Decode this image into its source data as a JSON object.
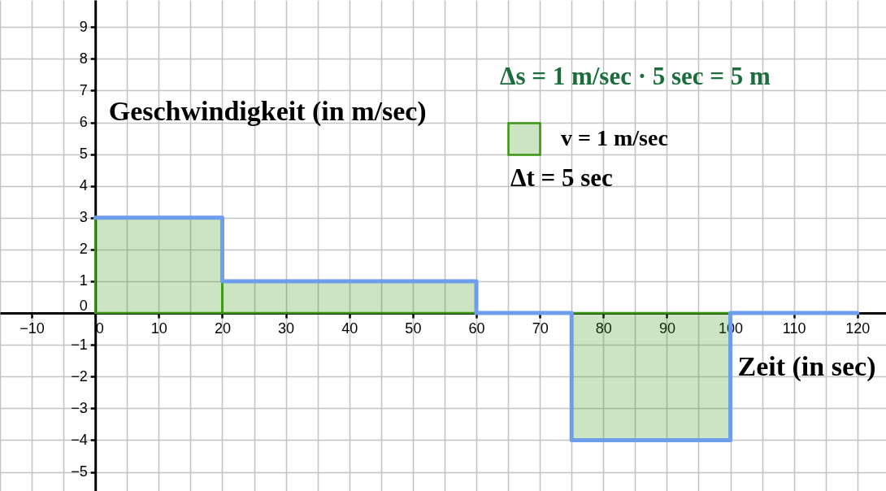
{
  "chart_data": {
    "type": "histogram",
    "xlabel": "Zeit (in sec)",
    "ylabel": "Geschwindigkeit (in m/sec)",
    "annotations": [
      "Δs = 1 m/sec · 5 sec = 5 m",
      "Δt = 5 sec"
    ],
    "series": [
      {
        "name": "v = 1 m/sec",
        "color": "#3c9614",
        "bins": [
          0,
          20,
          60,
          75,
          100
        ],
        "values": [
          3,
          1,
          0,
          -4
        ]
      },
      {
        "type": "step",
        "color": "#6d9eeb",
        "line_style": "solid",
        "x": [
          0,
          20,
          60,
          75,
          100,
          120
        ],
        "values": [
          3,
          1,
          0,
          -4,
          0,
          0
        ]
      }
    ],
    "xlim": [
      -15,
      124.5
    ],
    "ylim": [
      -5.6,
      9.85
    ],
    "xticks": [
      {
        "value": -15,
        "label": null
      },
      {
        "value": -10,
        "label": "−10"
      },
      {
        "value": -5,
        "label": null
      },
      0,
      {
        "value": 5,
        "label": null
      },
      10,
      {
        "value": 15,
        "label": null
      },
      20,
      {
        "value": 25,
        "label": null
      },
      30,
      {
        "value": 35,
        "label": null
      },
      40,
      {
        "value": 45,
        "label": null
      },
      50,
      {
        "value": 55,
        "label": null
      },
      60,
      {
        "value": 65,
        "label": null
      },
      70,
      {
        "value": 75,
        "label": null
      },
      80,
      {
        "value": 85,
        "label": null
      },
      90,
      {
        "value": 95,
        "label": null
      },
      100,
      {
        "value": 105,
        "label": null
      },
      110,
      {
        "value": 115,
        "label": null
      },
      120
    ],
    "yticks": [
      {
        "value": -5,
        "label": "−5"
      },
      {
        "value": -4,
        "label": "−4"
      },
      {
        "value": -3,
        "label": "−3"
      },
      {
        "value": -2,
        "label": "−2"
      },
      {
        "value": -1,
        "label": "−1"
      },
      0,
      1,
      2,
      3,
      4,
      5,
      6,
      7,
      8,
      9
    ],
    "grid": true,
    "legend": "top right"
  }
}
